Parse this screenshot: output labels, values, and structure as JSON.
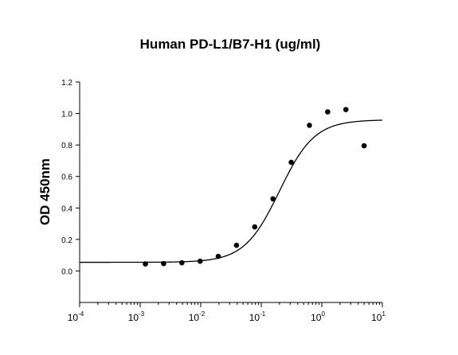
{
  "chart_data": {
    "type": "scatter",
    "title": "Human PD-L1/B7-H1 (ug/ml)",
    "xlabel": "",
    "ylabel": "OD 450nm",
    "x_scale": "log",
    "xlim": [
      0.0001,
      10
    ],
    "ylim": [
      -0.2,
      1.2
    ],
    "x_ticks": [
      {
        "base": "10",
        "exp": "-4"
      },
      {
        "base": "10",
        "exp": "-3"
      },
      {
        "base": "10",
        "exp": "-2"
      },
      {
        "base": "10",
        "exp": "-1"
      },
      {
        "base": "10",
        "exp": "0"
      },
      {
        "base": "10",
        "exp": "1"
      }
    ],
    "y_ticks": [
      "0.0",
      "0.2",
      "0.4",
      "0.6",
      "0.8",
      "1.0",
      "1.2"
    ],
    "grid": false,
    "legend": "none",
    "points": [
      {
        "x": 0.00122,
        "y": 0.045
      },
      {
        "x": 0.00244,
        "y": 0.047
      },
      {
        "x": 0.00488,
        "y": 0.052
      },
      {
        "x": 0.00977,
        "y": 0.062
      },
      {
        "x": 0.0195,
        "y": 0.093
      },
      {
        "x": 0.039,
        "y": 0.163
      },
      {
        "x": 0.078,
        "y": 0.28
      },
      {
        "x": 0.156,
        "y": 0.458
      },
      {
        "x": 0.3125,
        "y": 0.69
      },
      {
        "x": 0.625,
        "y": 0.925
      },
      {
        "x": 1.25,
        "y": 1.01
      },
      {
        "x": 2.5,
        "y": 1.025
      },
      {
        "x": 5,
        "y": 0.795
      }
    ],
    "fit_curve": {
      "model": "4PL",
      "bottom": 0.055,
      "top": 0.96,
      "ec50": 0.2,
      "hill": 1.5
    },
    "colors": {
      "points": "#000000",
      "curve": "#000000",
      "axes": "#000000"
    }
  }
}
